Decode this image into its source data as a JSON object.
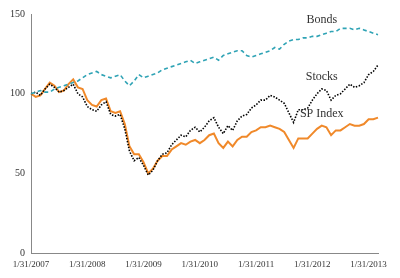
{
  "chart_data": {
    "type": "line",
    "categories": [
      "1/31/2007",
      null,
      null,
      null,
      null,
      null,
      null,
      null,
      null,
      null,
      null,
      null,
      "1/31/2008",
      null,
      null,
      null,
      null,
      null,
      null,
      null,
      null,
      null,
      null,
      null,
      "1/31/2009",
      null,
      null,
      null,
      null,
      null,
      null,
      null,
      null,
      null,
      null,
      null,
      "1/31/2010",
      null,
      null,
      null,
      null,
      null,
      null,
      null,
      null,
      null,
      null,
      null,
      "1/31/2011",
      null,
      null,
      null,
      null,
      null,
      null,
      null,
      null,
      null,
      null,
      null,
      "1/31/2012",
      null,
      null,
      null,
      null,
      null,
      null,
      null,
      null,
      null,
      null,
      null,
      "1/31/2013",
      null,
      null
    ],
    "series": [
      {
        "name": "Bonds",
        "color": "#2fa3b5",
        "line_style": "dashed",
        "values": [
          100,
          101,
          102,
          101,
          101,
          103,
          104,
          105,
          106,
          107,
          108,
          110,
          112,
          113,
          114,
          112,
          111,
          110,
          111,
          112,
          108,
          105,
          108,
          112,
          110,
          111,
          112,
          113,
          115,
          116,
          117,
          118,
          119,
          120,
          121,
          119,
          120,
          121,
          122,
          123,
          121,
          124,
          125,
          126,
          127,
          127,
          124,
          123,
          124,
          125,
          126,
          127,
          129,
          128,
          131,
          133,
          134,
          134,
          135,
          135,
          136,
          136,
          137,
          138,
          139,
          139,
          141,
          141,
          141,
          140,
          141,
          140,
          139,
          138,
          137
        ]
      },
      {
        "name": "Stocks",
        "color": "#000000",
        "line_style": "dotted",
        "values": [
          100,
          101,
          99,
          103,
          106,
          104,
          101,
          102,
          104,
          106,
          100,
          98,
          92,
          90,
          89,
          93,
          95,
          87,
          86,
          87,
          78,
          64,
          58,
          60,
          55,
          49,
          52,
          58,
          62,
          63,
          68,
          71,
          74,
          73,
          77,
          79,
          76,
          79,
          83,
          85,
          79,
          75,
          80,
          77,
          83,
          86,
          87,
          91,
          93,
          96,
          96,
          99,
          98,
          96,
          94,
          88,
          82,
          90,
          90,
          91,
          96,
          100,
          103,
          102,
          96,
          99,
          100,
          103,
          106,
          104,
          105,
          107,
          112,
          114,
          118
        ]
      },
      {
        "name": "SP Index",
        "color": "#f0892a",
        "line_style": "solid",
        "values": [
          100,
          98,
          99,
          103,
          107,
          105,
          101,
          102,
          106,
          109,
          104,
          103,
          96,
          93,
          92,
          96,
          97,
          89,
          88,
          89,
          81,
          67,
          62,
          62,
          57,
          50,
          53,
          58,
          61,
          61,
          65,
          67,
          69,
          68,
          70,
          71,
          69,
          71,
          74,
          75,
          69,
          66,
          70,
          67,
          71,
          73,
          73,
          76,
          77,
          79,
          79,
          80,
          79,
          78,
          76,
          71,
          66,
          72,
          72,
          72,
          75,
          78,
          80,
          79,
          74,
          77,
          77,
          79,
          81,
          80,
          80,
          81,
          84,
          84,
          85
        ]
      }
    ],
    "ylim": [
      0,
      150
    ],
    "yticks": [
      0,
      50,
      100,
      150
    ],
    "grid": false
  }
}
